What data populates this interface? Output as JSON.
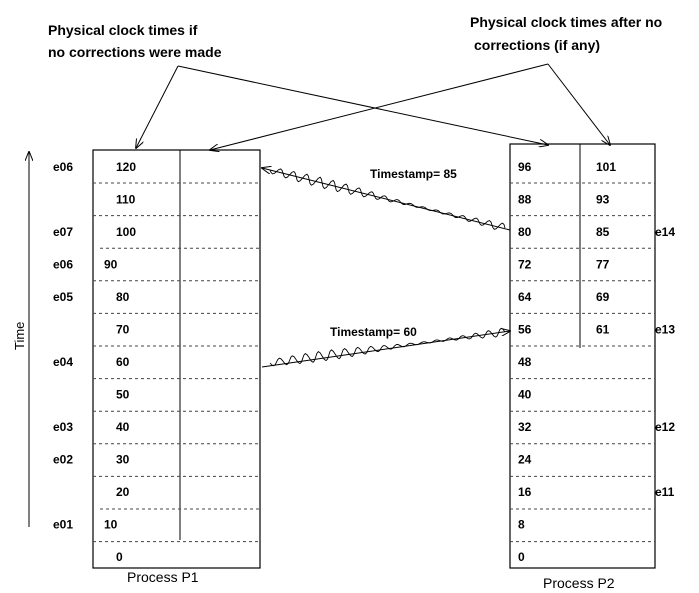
{
  "captions": {
    "left": [
      "Physical clock times if",
      "no corrections were made"
    ],
    "right": [
      "Physical clock times after no",
      "corrections (if any)"
    ]
  },
  "axis": {
    "label": "Time"
  },
  "process1": {
    "name": "Process P1",
    "values": [
      "120",
      "110",
      "100",
      "90",
      "80",
      "70",
      "60",
      "50",
      "40",
      "30",
      "20",
      "10",
      "0"
    ],
    "events": [
      "e06",
      "",
      "e07",
      "e06",
      "e05",
      "",
      "e04",
      "",
      "e03",
      "e02",
      "",
      "e01",
      ""
    ]
  },
  "process2": {
    "name": "Process P2",
    "col1": [
      "96",
      "88",
      "80",
      "72",
      "64",
      "56",
      "48",
      "40",
      "32",
      "24",
      "16",
      "8",
      "0"
    ],
    "col2": [
      "101",
      "93",
      "85",
      "77",
      "69",
      "61",
      "",
      "",
      "",
      "",
      "",
      "",
      ""
    ],
    "events": [
      "",
      "",
      "e14",
      "",
      "",
      "e13",
      "",
      "",
      "e12",
      "",
      "e11",
      "",
      ""
    ]
  },
  "messages": [
    {
      "label": "Timestamp= 85",
      "from": "P2 at 80",
      "to": "P1 at 120"
    },
    {
      "label": "Timestamp= 60",
      "from": "P1 at 60",
      "to": "P2 at 56"
    }
  ]
}
